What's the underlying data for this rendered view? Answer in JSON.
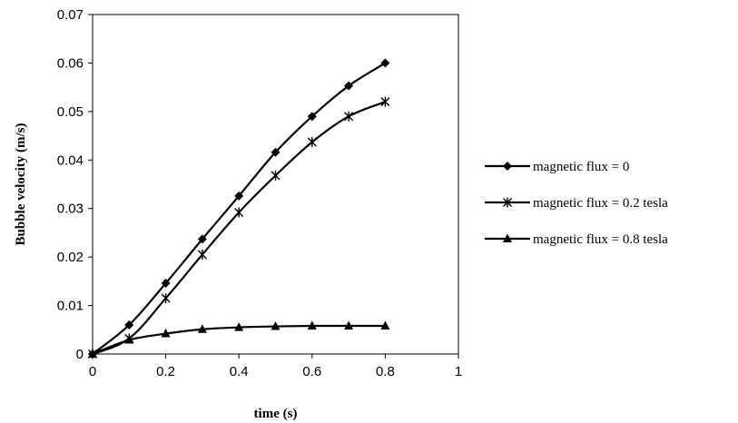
{
  "chart_data": {
    "type": "line",
    "title": "",
    "xlabel": "time (s)",
    "ylabel": "Bubble velocity (m/s)",
    "xlim": [
      0,
      1
    ],
    "ylim": [
      0,
      0.07
    ],
    "x_ticks": [
      "0",
      "0.2",
      "0.4",
      "0.6",
      "0.8",
      "1"
    ],
    "y_ticks": [
      "0",
      "0.01",
      "0.02",
      "0.03",
      "0.04",
      "0.05",
      "0.06",
      "0.07"
    ],
    "grid": false,
    "legend_position": "right",
    "x": [
      0,
      0.1,
      0.2,
      0.3,
      0.4,
      0.5,
      0.6,
      0.7,
      0.8
    ],
    "series": [
      {
        "name": "magnetic flux = 0",
        "marker": "diamond",
        "color": "#000000",
        "values": [
          0,
          0.006,
          0.0146,
          0.0237,
          0.0326,
          0.0416,
          0.049,
          0.0553,
          0.06
        ]
      },
      {
        "name": "magnetic flux = 0.2 tesla",
        "marker": "asterisk",
        "color": "#000000",
        "values": [
          0,
          0.0032,
          0.0115,
          0.0205,
          0.0292,
          0.0368,
          0.0437,
          0.049,
          0.052
        ]
      },
      {
        "name": "magnetic flux = 0.8 tesla",
        "marker": "triangle",
        "color": "#000000",
        "values": [
          0,
          0.0029,
          0.0042,
          0.0051,
          0.0055,
          0.0057,
          0.0058,
          0.0058,
          0.0058
        ]
      }
    ]
  }
}
